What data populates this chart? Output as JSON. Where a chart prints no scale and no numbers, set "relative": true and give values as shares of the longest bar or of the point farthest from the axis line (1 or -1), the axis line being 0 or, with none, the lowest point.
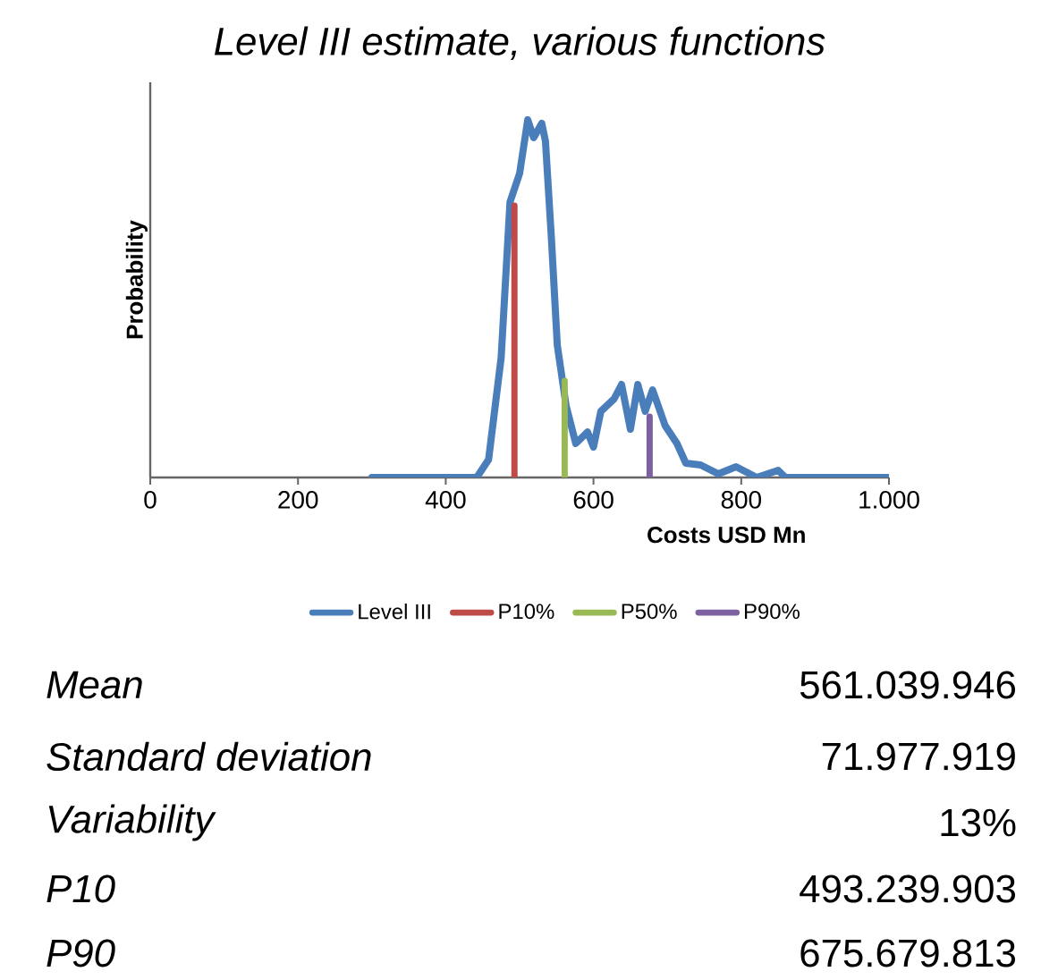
{
  "chart_data": {
    "type": "line",
    "title": "Level III estimate, various functions",
    "xlabel": "Costs USD Mn",
    "ylabel": "Probability",
    "relative": true,
    "xlim": [
      0,
      1000
    ],
    "xticks": [
      0,
      200,
      400,
      600,
      800,
      {
        "value": 1000,
        "label": "1.000"
      }
    ],
    "series": [
      {
        "name": "Level III",
        "color": "#4a7ebb",
        "x": [
          300,
          442,
          458,
          475,
          487,
          500,
          511,
          519,
          530,
          535,
          543,
          551,
          563,
          576,
          592,
          600,
          610,
          628,
          638,
          650,
          660,
          670,
          680,
          697,
          713,
          725,
          745,
          769,
          793,
          821,
          850,
          860,
          1000
        ],
        "values": [
          0,
          0,
          0.05,
          0.335,
          0.77,
          0.85,
          1,
          0.95,
          0.99,
          0.94,
          0.67,
          0.37,
          0.2,
          0.095,
          0.127,
          0.085,
          0.185,
          0.22,
          0.26,
          0.135,
          0.26,
          0.185,
          0.245,
          0.145,
          0.095,
          0.04,
          0.035,
          0.01,
          0.03,
          0,
          0.02,
          0,
          0
        ]
      },
      {
        "name": "P10%",
        "color": "#be4b48",
        "x": [
          493,
          493
        ],
        "values": [
          0,
          0.76
        ]
      },
      {
        "name": "P50%",
        "color": "#98b954",
        "x": [
          561,
          561
        ],
        "values": [
          0,
          0.27
        ]
      },
      {
        "name": "P90%",
        "color": "#7d60a0",
        "x": [
          676,
          676
        ],
        "values": [
          0,
          0.17
        ]
      }
    ],
    "legend": "bottom",
    "grid": false,
    "marker": "none",
    "line_style": "solid",
    "annotations": [
      "Mean",
      "561.039.946",
      "Standard deviation",
      "71.977.919",
      "Variability",
      "13%",
      "P10",
      "493.239.903",
      "P90",
      "675.679.813"
    ]
  }
}
